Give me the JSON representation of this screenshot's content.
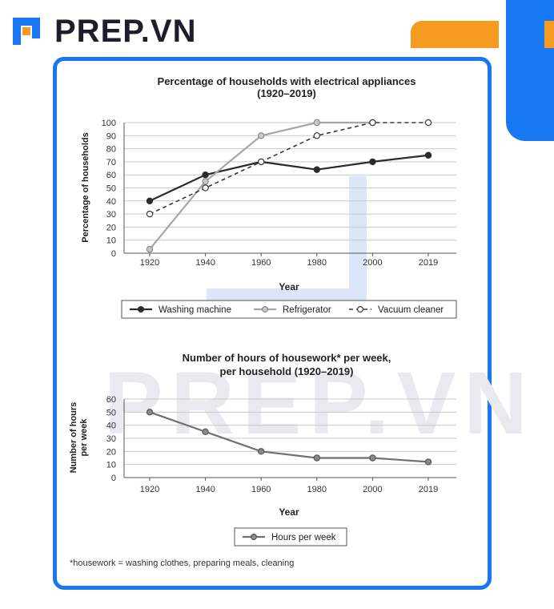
{
  "brand": {
    "name": "PREP.VN"
  },
  "watermark": "PREP.VN",
  "colors": {
    "brand_blue": "#1877f2",
    "brand_orange": "#f59b1f",
    "series_dark": "#2b2b2b",
    "series_grey": "#9a9a9a",
    "series_mid": "#6e6e6e"
  },
  "footnote": "*housework = washing clothes, preparing meals, cleaning",
  "chart_data": [
    {
      "type": "line",
      "title": "Percentage of households with electrical appliances",
      "subtitle": "(1920–2019)",
      "xlabel": "Year",
      "ylabel": "Percentage of households",
      "x": [
        "1920",
        "1940",
        "1960",
        "1980",
        "2000",
        "2019"
      ],
      "ylim": [
        0,
        100
      ],
      "yticks": [
        0,
        10,
        20,
        30,
        40,
        50,
        60,
        70,
        80,
        90,
        100
      ],
      "grid": true,
      "legend_position": "bottom",
      "series": [
        {
          "name": "Washing machine",
          "values": [
            40,
            60,
            70,
            64,
            70,
            75
          ],
          "style": "solid-dark"
        },
        {
          "name": "Refrigerator",
          "values": [
            3,
            55,
            90,
            100,
            100,
            null
          ],
          "style": "solid-grey"
        },
        {
          "name": "Vacuum cleaner",
          "values": [
            30,
            50,
            70,
            90,
            100,
            100
          ],
          "style": "dashed-hollow"
        }
      ]
    },
    {
      "type": "line",
      "title": "Number of hours of housework* per week,",
      "subtitle": "per household (1920–2019)",
      "xlabel": "Year",
      "ylabel": "Number of hours per week",
      "ylabel_lines": [
        "Number of hours",
        "per week"
      ],
      "x": [
        "1920",
        "1940",
        "1960",
        "1980",
        "2000",
        "2019"
      ],
      "ylim": [
        0,
        60
      ],
      "yticks": [
        0,
        10,
        20,
        30,
        40,
        50,
        60
      ],
      "grid": true,
      "legend_position": "bottom",
      "series": [
        {
          "name": "Hours per week",
          "values": [
            50,
            35,
            20,
            15,
            15,
            12
          ],
          "style": "solid-mid"
        }
      ]
    }
  ]
}
